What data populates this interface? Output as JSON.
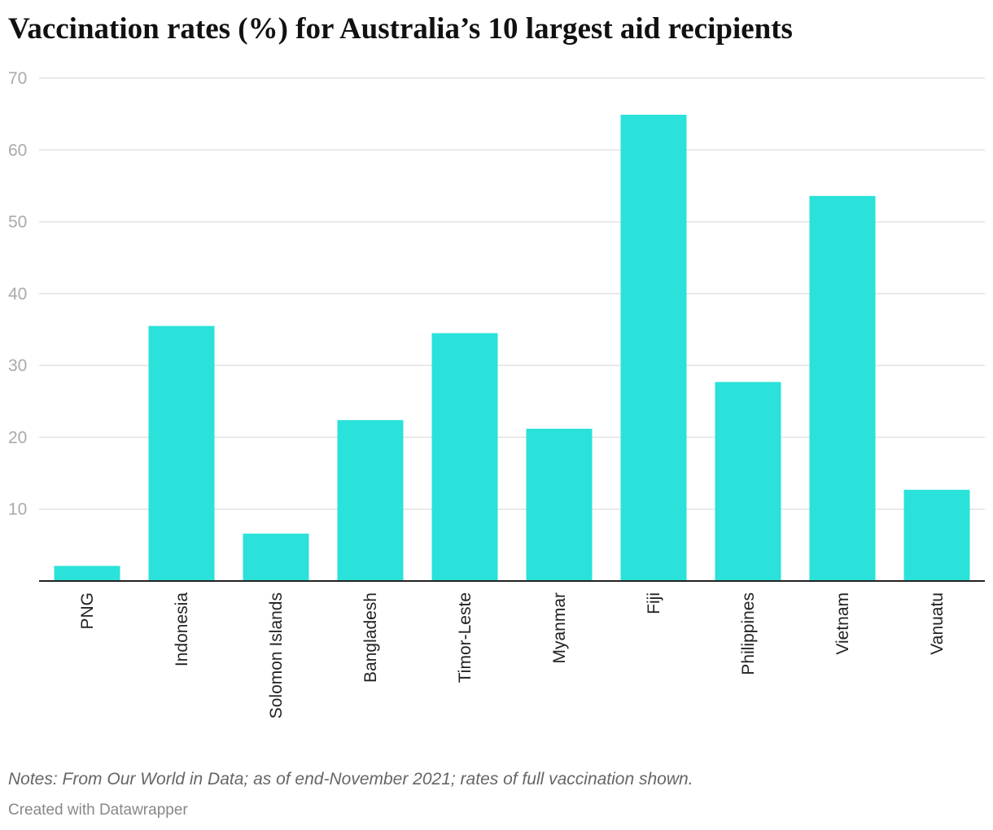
{
  "chart_data": {
    "type": "bar",
    "title": "Vaccination rates (%) for Australia’s 10 largest aid recipients",
    "categories": [
      "PNG",
      "Indonesia",
      "Solomon Islands",
      "Bangladesh",
      "Timor-Leste",
      "Myanmar",
      "Fiji",
      "Philippines",
      "Vietnam",
      "Vanuatu"
    ],
    "values": [
      2.1,
      35.5,
      6.6,
      22.4,
      34.5,
      21.2,
      64.9,
      27.7,
      53.6,
      12.7
    ],
    "yticks": [
      10,
      20,
      30,
      40,
      50,
      60,
      70
    ],
    "ylim": [
      0,
      70
    ],
    "grid": true,
    "bar_color": "#2ae2d9",
    "xlabel": "",
    "ylabel": ""
  },
  "notes": "Notes: From Our World in Data; as of end-November 2021; rates of full vaccination shown.",
  "credit": "Created with Datawrapper"
}
